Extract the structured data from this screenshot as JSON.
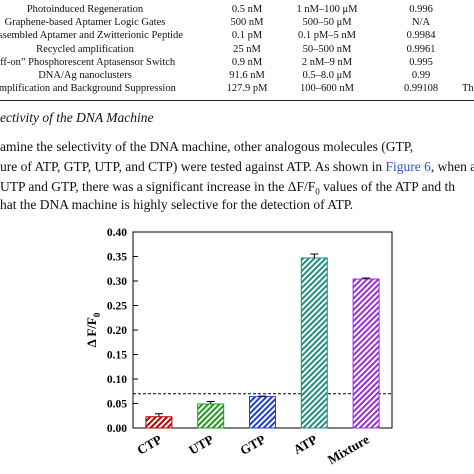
{
  "table": {
    "rows": [
      [
        "Photoinduced Regeneration",
        "0.5 nM",
        "1 nM–100 μM",
        "0.996"
      ],
      [
        "Graphene-based Aptamer Logic Gates",
        "500 nM",
        "500–50 μM",
        "N/A"
      ],
      [
        "f-assembled Aptamer and Zwitterionic Peptide",
        "0.1 pM",
        "0.1 pM–5 nM",
        "0.9984"
      ],
      [
        "Recycled amplification",
        "25 nM",
        "50–500 nM",
        "0.9961"
      ],
      [
        "off-on” Phosphorescent Aptasensor Switch",
        "0.9 nM",
        "2 nM–9 nM",
        "0.995"
      ],
      [
        "DNA/Ag nanoclusters",
        "91.6 nM",
        "0.5–8.0 μM",
        "0.99"
      ],
      [
        "amplification and Background Suppression",
        "127.9 pM",
        "100–600 nM",
        "0.99108",
        "Th"
      ]
    ]
  },
  "section": {
    "title": "ectivity of the DNA Machine"
  },
  "paragraph": {
    "lines": [
      [
        "amine the selectivity of the DNA machine, other analogous molecules (GTP,"
      ],
      [
        "ure of ATP, GTP, UTP, and CTP) were tested against ATP. As shown in ",
        "Figure 6",
        ", when a"
      ],
      [
        "UTP and GTP, there was a significant increase in the ΔF/F",
        "0",
        " values of the ATP and th"
      ],
      [
        "hat the DNA machine is highly selective for the detection of ATP."
      ]
    ]
  },
  "chart_data": {
    "type": "bar",
    "ylabel": "Δ F/F",
    "ylabel_sub": "0",
    "categories": [
      "CTP",
      "UTP",
      "GTP",
      "ATP",
      "Mixture"
    ],
    "values": [
      0.023,
      0.049,
      0.064,
      0.347,
      0.304
    ],
    "errors": [
      0.006,
      0.005,
      0.001,
      0.008,
      0.002
    ],
    "colors": [
      "#c00000",
      "#1f9a1f",
      "#1f3fd0",
      "#1e8f80",
      "#9b2fd9"
    ],
    "hatch": true,
    "threshold": 0.07,
    "ylim": [
      0,
      0.4
    ],
    "yticks": [
      {
        "value": 0,
        "label": "0.00"
      },
      {
        "value": 0.05,
        "label": "0.05"
      },
      {
        "value": 0.1,
        "label": "0.10"
      },
      {
        "value": 0.15,
        "label": "0.15"
      },
      {
        "value": 0.2,
        "label": "0.20"
      },
      {
        "value": 0.25,
        "label": "0.25"
      },
      {
        "value": 0.3,
        "label": "0.30"
      },
      {
        "value": 0.35,
        "label": "0.35"
      },
      {
        "value": 0.4,
        "label": "0.40"
      }
    ]
  }
}
